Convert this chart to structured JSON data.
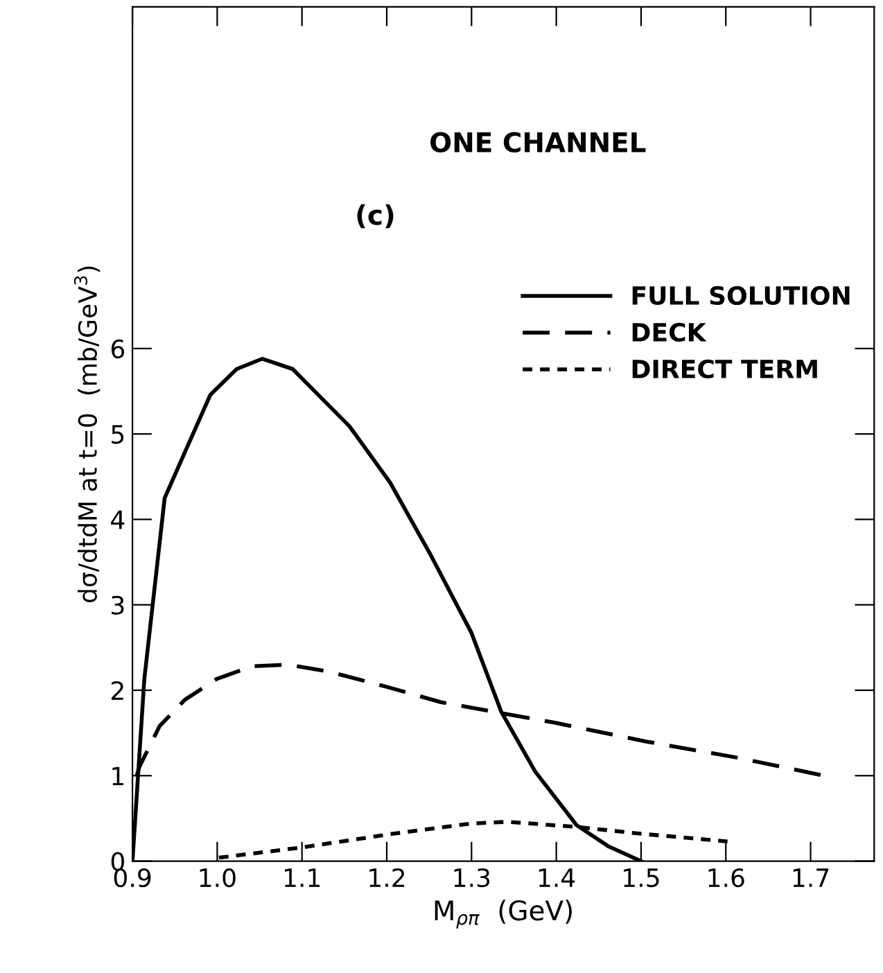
{
  "chart_data": {
    "type": "line",
    "xlabel": "M$_{ρπ}$  (GeV)",
    "ylabel": "dσ/dtdM at t=0  (mb/GeV$^{3}$)",
    "annotations": [
      "ONE CHANNEL",
      "(c)"
    ],
    "xlim": [
      0.9,
      1.775
    ],
    "ylim": [
      0,
      10
    ],
    "xticks": [
      {
        "value": 0.9,
        "label": "0.9"
      },
      {
        "value": 1.0,
        "label": "1.0"
      },
      {
        "value": 1.1,
        "label": "1.1"
      },
      {
        "value": 1.2,
        "label": "1.2"
      },
      {
        "value": 1.3,
        "label": "1.3"
      },
      {
        "value": 1.4,
        "label": "1.4"
      },
      {
        "value": 1.5,
        "label": "1.5"
      },
      {
        "value": 1.6,
        "label": "1.6"
      },
      {
        "value": 1.7,
        "label": "1.7"
      }
    ],
    "yticks": [
      0,
      1,
      2,
      3,
      4,
      5,
      6
    ],
    "legend": "top right",
    "grid": false,
    "series": [
      {
        "name": "FULL SOLUTION",
        "color": "#000000",
        "line_style": "solid",
        "x": [
          0.9,
          0.902,
          0.914,
          0.938,
          0.962,
          0.992,
          1.023,
          1.053,
          1.089,
          1.113,
          1.156,
          1.204,
          1.252,
          1.3,
          1.335,
          1.375,
          1.424,
          1.462,
          1.5
        ],
        "values": [
          0,
          0.3,
          2.13,
          4.25,
          4.79,
          5.46,
          5.76,
          5.88,
          5.76,
          5.52,
          5.09,
          4.43,
          3.58,
          2.67,
          1.75,
          1.05,
          0.42,
          0.17,
          0
        ]
      },
      {
        "name": "DECK",
        "color": "#000000",
        "line_style": "dashed",
        "x": [
          0.905,
          0.908,
          0.932,
          0.962,
          0.999,
          1.041,
          1.083,
          1.131,
          1.2,
          1.264,
          1.331,
          1.398,
          1.506,
          1.614,
          1.716
        ],
        "values": [
          1.0,
          1.1,
          1.58,
          1.89,
          2.13,
          2.28,
          2.3,
          2.22,
          2.04,
          1.86,
          1.74,
          1.62,
          1.4,
          1.21,
          1.0
        ]
      },
      {
        "name": "DIRECT TERM",
        "color": "#000000",
        "line_style": "dotted",
        "x": [
          1.002,
          1.1,
          1.2,
          1.3,
          1.343,
          1.424,
          1.5,
          1.602
        ],
        "values": [
          0.04,
          0.16,
          0.31,
          0.44,
          0.46,
          0.4,
          0.32,
          0.23
        ]
      }
    ]
  }
}
